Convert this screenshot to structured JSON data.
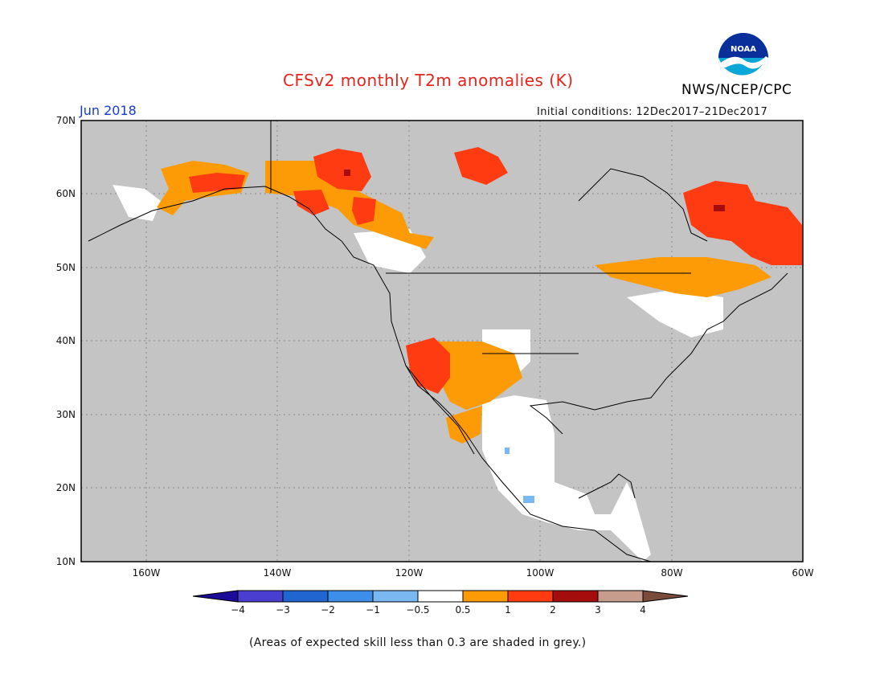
{
  "header": {
    "title": "CFSv2 monthly T2m anomalies (K)",
    "agency": "NWS/NCEP/CPC",
    "period": "Jun 2018",
    "initial_conditions": "Initial conditions: 12Dec2017–21Dec2017",
    "logo_text": "NOAA"
  },
  "map": {
    "lon_range": [
      -170,
      -60
    ],
    "lat_range": [
      10,
      70
    ],
    "lat_labels": [
      "70N",
      "60N",
      "50N",
      "40N",
      "30N",
      "20N",
      "10N"
    ],
    "lon_labels": [
      "160W",
      "140W",
      "120W",
      "100W",
      "80W",
      "60W"
    ],
    "background_color": "#c4c4c4",
    "land_outline_color": "#000000",
    "regions": [
      {
        "name": "western-alaska",
        "category": "0.5-1",
        "color": "#fd9b06"
      },
      {
        "name": "southern-alaska-coast",
        "category": "1-2",
        "color": "#ff3b12"
      },
      {
        "name": "yukon",
        "category": "1-2",
        "color": "#ff3b12"
      },
      {
        "name": "northwest-territories",
        "category": "1-2",
        "color": "#ff3b12"
      },
      {
        "name": "british-columbia",
        "category": "0.5-1",
        "color": "#fd9b06"
      },
      {
        "name": "southwest-us",
        "category": "1-2",
        "color": "#ff3b12"
      },
      {
        "name": "new-mexico-arizona",
        "category": "0.5-1",
        "color": "#fd9b06"
      },
      {
        "name": "mexico",
        "category": "-0.5-0.5",
        "color": "#ffffff"
      },
      {
        "name": "quebec-labrador",
        "category": "1-2",
        "color": "#ff3b12"
      },
      {
        "name": "ontario-great-lakes",
        "category": "0.5-1",
        "color": "#fd9b06"
      }
    ]
  },
  "colorbar": {
    "labels": [
      "−4",
      "−3",
      "−2",
      "−1",
      "−0.5",
      "0.5",
      "1",
      "2",
      "3",
      "4"
    ],
    "colors": [
      "#1a0b99",
      "#4a3ed0",
      "#2165d0",
      "#3d8ee8",
      "#7ab8f2",
      "#ffffff",
      "#fd9b06",
      "#ff3b12",
      "#a50d0d",
      "#c89c8c",
      "#7a4a3a"
    ]
  },
  "footer": {
    "skill_note": "(Areas of expected skill less than 0.3 are shaded in grey.)"
  }
}
